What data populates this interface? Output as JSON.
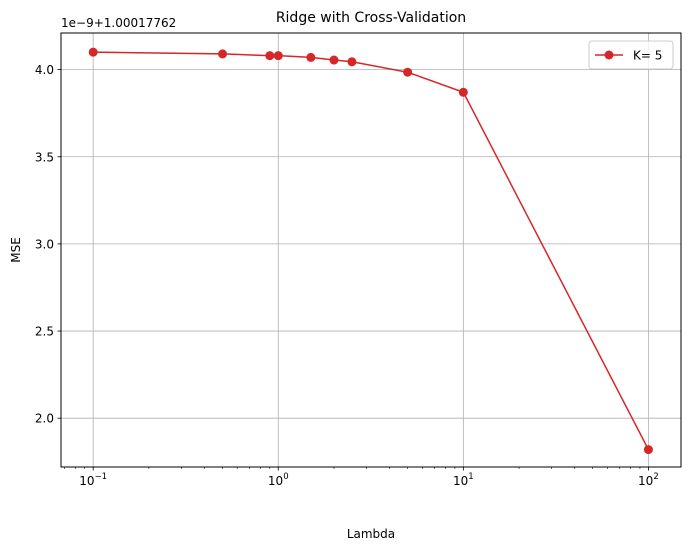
{
  "chart_data": {
    "type": "line",
    "title": "Ridge with Cross-Validation",
    "xlabel": "Lambda",
    "ylabel": "MSE",
    "xscale": "log",
    "xlim": [
      0.067,
      150
    ],
    "ylim": [
      1.72,
      4.21
    ],
    "y_offset_label": "1e−9+1.00017762",
    "grid": true,
    "legend_position": "upper right",
    "series": [
      {
        "name": "K= 5",
        "color": "#d62728",
        "marker": "circle",
        "x": [
          0.1,
          0.5,
          0.9,
          1,
          1.5,
          2,
          2.5,
          5,
          10,
          100
        ],
        "y": [
          4.1,
          4.09,
          4.08,
          4.08,
          4.07,
          4.055,
          4.045,
          3.985,
          3.87,
          1.82
        ]
      }
    ],
    "x_ticks": [
      {
        "value": 0.1,
        "base": "10",
        "exp": "−1"
      },
      {
        "value": 1,
        "base": "10",
        "exp": "0"
      },
      {
        "value": 10,
        "base": "10",
        "exp": "1"
      },
      {
        "value": 100,
        "base": "10",
        "exp": "2"
      }
    ],
    "y_ticks": [
      {
        "value": 2.0,
        "label": "2.0"
      },
      {
        "value": 2.5,
        "label": "2.5"
      },
      {
        "value": 3.0,
        "label": "3.0"
      },
      {
        "value": 3.5,
        "label": "3.5"
      },
      {
        "value": 4.0,
        "label": "4.0"
      }
    ]
  }
}
